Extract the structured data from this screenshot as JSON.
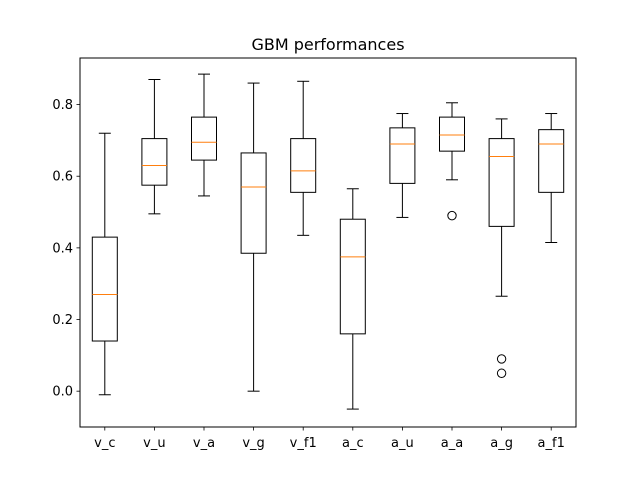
{
  "chart_data": {
    "type": "boxplot",
    "title": "GBM performances",
    "xlabel": "",
    "ylabel": "",
    "ylim": [
      -0.1,
      0.93
    ],
    "yticks": [
      0.0,
      0.2,
      0.4,
      0.6,
      0.8
    ],
    "ytick_labels": [
      "0.0",
      "0.2",
      "0.4",
      "0.6",
      "0.8"
    ],
    "grid": false,
    "categories": [
      "v_c",
      "v_u",
      "v_a",
      "v_g",
      "v_f1",
      "a_c",
      "a_u",
      "a_a",
      "a_g",
      "a_f1"
    ],
    "boxes": [
      {
        "whisker_low": -0.01,
        "q1": 0.14,
        "median": 0.27,
        "q3": 0.43,
        "whisker_high": 0.72,
        "outliers": []
      },
      {
        "whisker_low": 0.495,
        "q1": 0.575,
        "median": 0.63,
        "q3": 0.705,
        "whisker_high": 0.87,
        "outliers": []
      },
      {
        "whisker_low": 0.545,
        "q1": 0.645,
        "median": 0.695,
        "q3": 0.765,
        "whisker_high": 0.885,
        "outliers": []
      },
      {
        "whisker_low": 0.0,
        "q1": 0.385,
        "median": 0.57,
        "q3": 0.665,
        "whisker_high": 0.86,
        "outliers": []
      },
      {
        "whisker_low": 0.435,
        "q1": 0.555,
        "median": 0.615,
        "q3": 0.705,
        "whisker_high": 0.865,
        "outliers": []
      },
      {
        "whisker_low": -0.05,
        "q1": 0.16,
        "median": 0.375,
        "q3": 0.48,
        "whisker_high": 0.565,
        "outliers": []
      },
      {
        "whisker_low": 0.485,
        "q1": 0.58,
        "median": 0.69,
        "q3": 0.735,
        "whisker_high": 0.775,
        "outliers": []
      },
      {
        "whisker_low": 0.59,
        "q1": 0.67,
        "median": 0.715,
        "q3": 0.765,
        "whisker_high": 0.805,
        "outliers": [
          0.49
        ]
      },
      {
        "whisker_low": 0.265,
        "q1": 0.46,
        "median": 0.655,
        "q3": 0.705,
        "whisker_high": 0.76,
        "outliers": [
          0.09,
          0.05
        ]
      },
      {
        "whisker_low": 0.415,
        "q1": 0.555,
        "median": 0.69,
        "q3": 0.73,
        "whisker_high": 0.775,
        "outliers": []
      }
    ],
    "colors": {
      "box": "#000000",
      "median": "#ff7f0e",
      "axes": "#000000",
      "background": "#ffffff"
    }
  }
}
